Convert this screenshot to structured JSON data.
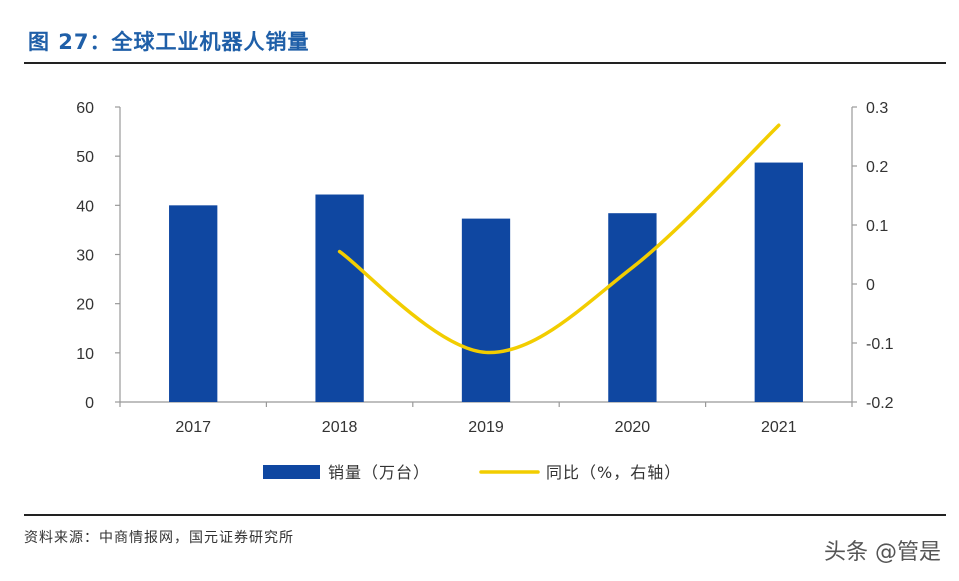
{
  "title": "图 27：全球工业机器人销量",
  "source": "资料来源：中商情报网，国元证券研究所",
  "watermark": "头条 @管是",
  "chart_data": {
    "type": "bar",
    "categories": [
      "2017",
      "2018",
      "2019",
      "2020",
      "2021"
    ],
    "series": [
      {
        "name": "销量（万台）",
        "kind": "bar",
        "axis": "left",
        "color": "#0f47a1",
        "values": [
          40.0,
          42.2,
          37.3,
          38.4,
          48.7
        ]
      },
      {
        "name": "同比（%，右轴）",
        "kind": "line",
        "axis": "right",
        "color": "#f2cd00",
        "values": [
          null,
          0.055,
          -0.116,
          0.028,
          0.269
        ]
      }
    ],
    "ylim_left": [
      0,
      60
    ],
    "yticks_left": [
      "0",
      "10",
      "20",
      "30",
      "40",
      "50",
      "60"
    ],
    "ylim_right": [
      -0.2,
      0.3
    ],
    "yticks_right": [
      "-0.2",
      "-0.1",
      "0",
      "0.1",
      "0.2",
      "0.3"
    ],
    "grid": false,
    "legend_position": "bottom"
  }
}
